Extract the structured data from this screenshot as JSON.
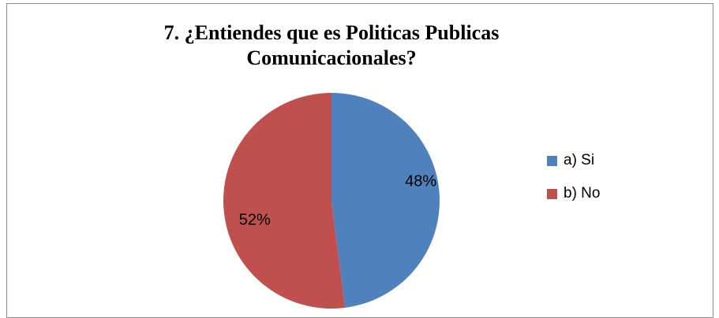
{
  "chart_data": {
    "type": "pie",
    "title_lines": [
      "7. ¿Entiendes  que es Politicas  Publicas",
      "Comunicacionales?"
    ],
    "categories": [
      "a) Si",
      "b) No"
    ],
    "values": [
      48,
      52
    ],
    "labels": [
      "48%",
      "52%"
    ],
    "colors": [
      "#4f81bd",
      "#c0504d"
    ],
    "legend_position": "right"
  }
}
